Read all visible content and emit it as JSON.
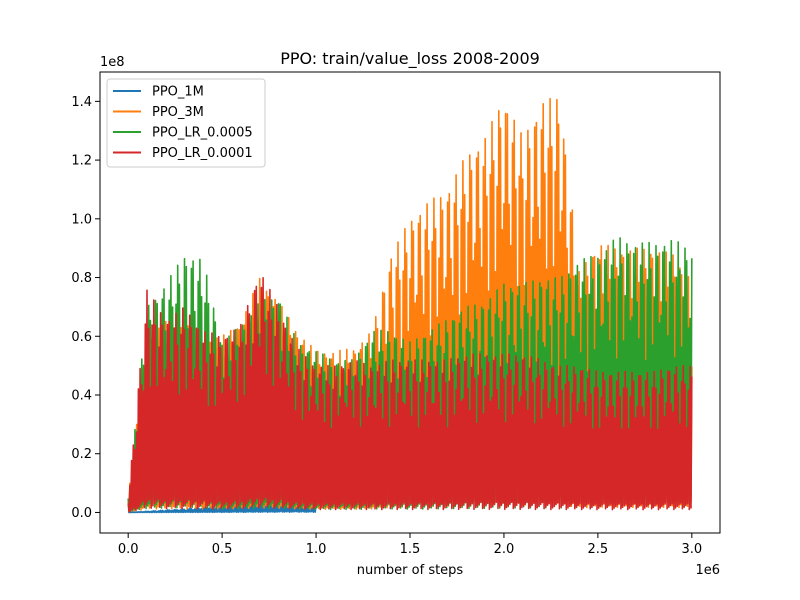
{
  "chart_data": {
    "type": "line",
    "title": "PPO: train/value_loss 2008-2009",
    "xlabel": "number of steps",
    "ylabel": "",
    "x_offset_label": "1e6",
    "y_offset_label": "1e8",
    "xlim": [
      -0.15,
      3.15
    ],
    "ylim": [
      -0.07,
      1.5
    ],
    "xticks": [
      0.0,
      0.5,
      1.0,
      1.5,
      2.0,
      2.5,
      3.0
    ],
    "xtick_labels": [
      "0.0",
      "0.5",
      "1.0",
      "1.5",
      "2.0",
      "2.5",
      "3.0"
    ],
    "yticks": [
      0.0,
      0.2,
      0.4,
      0.6,
      0.8,
      1.0,
      1.2,
      1.4
    ],
    "ytick_labels": [
      "0.0",
      "0.2",
      "0.4",
      "0.6",
      "0.8",
      "1.0",
      "1.2",
      "1.4"
    ],
    "grid": false,
    "legend_position": "top-left",
    "series": [
      {
        "name": "PPO_1M",
        "color": "#1f77b4",
        "x": [
          0.0,
          0.1,
          0.2,
          0.3,
          0.4,
          0.5,
          0.6,
          0.7,
          0.8,
          0.9,
          1.0
        ],
        "y": [
          0.0,
          0.004,
          0.008,
          0.012,
          0.018,
          0.024,
          0.03,
          0.036,
          0.042,
          0.045,
          0.035
        ]
      },
      {
        "name": "PPO_3M",
        "color": "#ff7f0e",
        "x": [
          0.0,
          0.1,
          0.2,
          0.3,
          0.4,
          0.5,
          0.6,
          0.7,
          0.8,
          0.9,
          1.0,
          1.1,
          1.2,
          1.3,
          1.4,
          1.5,
          1.6,
          1.7,
          1.8,
          1.9,
          2.0,
          2.1,
          2.2,
          2.3,
          2.4,
          2.5,
          2.6,
          2.7,
          2.8,
          2.9,
          3.0
        ],
        "y": [
          0.05,
          0.6,
          0.65,
          0.65,
          0.6,
          0.6,
          0.65,
          0.8,
          0.72,
          0.62,
          0.55,
          0.55,
          0.56,
          0.62,
          0.88,
          1.0,
          1.06,
          1.1,
          1.22,
          1.28,
          1.42,
          1.28,
          1.4,
          1.42,
          0.82,
          0.92,
          0.9,
          0.9,
          0.9,
          0.88,
          0.8
        ]
      },
      {
        "name": "PPO_LR_0.0005",
        "color": "#2ca02c",
        "x": [
          0.0,
          0.1,
          0.2,
          0.3,
          0.4,
          0.5,
          0.6,
          0.7,
          0.8,
          0.9,
          1.0,
          1.1,
          1.2,
          1.3,
          1.4,
          1.5,
          1.6,
          1.7,
          1.8,
          1.9,
          2.0,
          2.1,
          2.2,
          2.3,
          2.4,
          2.5,
          2.6,
          2.7,
          2.8,
          2.9,
          3.0
        ],
        "y": [
          0.05,
          0.7,
          0.78,
          0.88,
          0.86,
          0.58,
          0.64,
          0.72,
          0.74,
          0.58,
          0.55,
          0.52,
          0.52,
          0.62,
          0.62,
          0.58,
          0.62,
          0.66,
          0.7,
          0.72,
          0.78,
          0.78,
          0.8,
          0.8,
          0.86,
          0.88,
          0.94,
          0.92,
          0.92,
          0.93,
          0.9
        ]
      },
      {
        "name": "PPO_LR_0.0001",
        "color": "#d62728",
        "x": [
          0.0,
          0.1,
          0.2,
          0.3,
          0.4,
          0.5,
          0.6,
          0.7,
          0.8,
          0.9,
          1.0,
          1.1,
          1.2,
          1.3,
          1.4,
          1.5,
          1.6,
          1.7,
          1.8,
          1.9,
          2.0,
          2.1,
          2.2,
          2.3,
          2.4,
          2.5,
          2.6,
          2.7,
          2.8,
          2.9,
          3.0
        ],
        "y": [
          0.05,
          0.76,
          0.66,
          0.7,
          0.62,
          0.6,
          0.64,
          0.83,
          0.7,
          0.56,
          0.5,
          0.5,
          0.52,
          0.5,
          0.52,
          0.52,
          0.52,
          0.52,
          0.54,
          0.54,
          0.54,
          0.54,
          0.52,
          0.5,
          0.5,
          0.48,
          0.48,
          0.48,
          0.48,
          0.5,
          0.5
        ]
      }
    ]
  }
}
